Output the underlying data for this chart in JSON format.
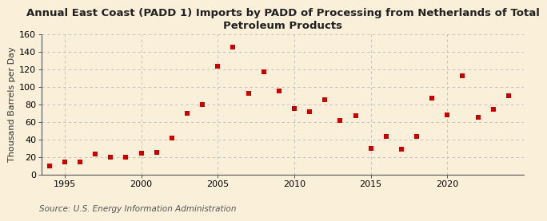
{
  "title": "Annual East Coast (PADD 1) Imports by PADD of Processing from Netherlands of Total\nPetroleum Products",
  "ylabel": "Thousand Barrels per Day",
  "source": "Source: U.S. Energy Information Administration",
  "background_color": "#faefd8",
  "plot_bg_color": "#faefd8",
  "years": [
    1994,
    1995,
    1996,
    1997,
    1998,
    1999,
    2000,
    2001,
    2002,
    2003,
    2004,
    2005,
    2006,
    2007,
    2008,
    2009,
    2010,
    2011,
    2012,
    2013,
    2014,
    2015,
    2016,
    2017,
    2018,
    2019,
    2020,
    2021,
    2022,
    2023,
    2024
  ],
  "values": [
    10,
    14,
    14,
    23,
    20,
    20,
    24,
    25,
    42,
    70,
    80,
    124,
    146,
    93,
    117,
    95,
    75,
    72,
    85,
    62,
    67,
    30,
    43,
    29,
    43,
    87,
    68,
    113,
    65,
    74,
    90
  ],
  "marker_color": "#cc0000",
  "marker_size": 5,
  "xlim": [
    1993.5,
    2025
  ],
  "ylim": [
    0,
    160
  ],
  "yticks": [
    0,
    20,
    40,
    60,
    80,
    100,
    120,
    140,
    160
  ],
  "xticks": [
    1995,
    2000,
    2005,
    2010,
    2015,
    2020
  ],
  "grid_color": "#bbbbbb",
  "title_fontsize": 9.5,
  "label_fontsize": 8,
  "tick_fontsize": 8,
  "source_fontsize": 7.5
}
